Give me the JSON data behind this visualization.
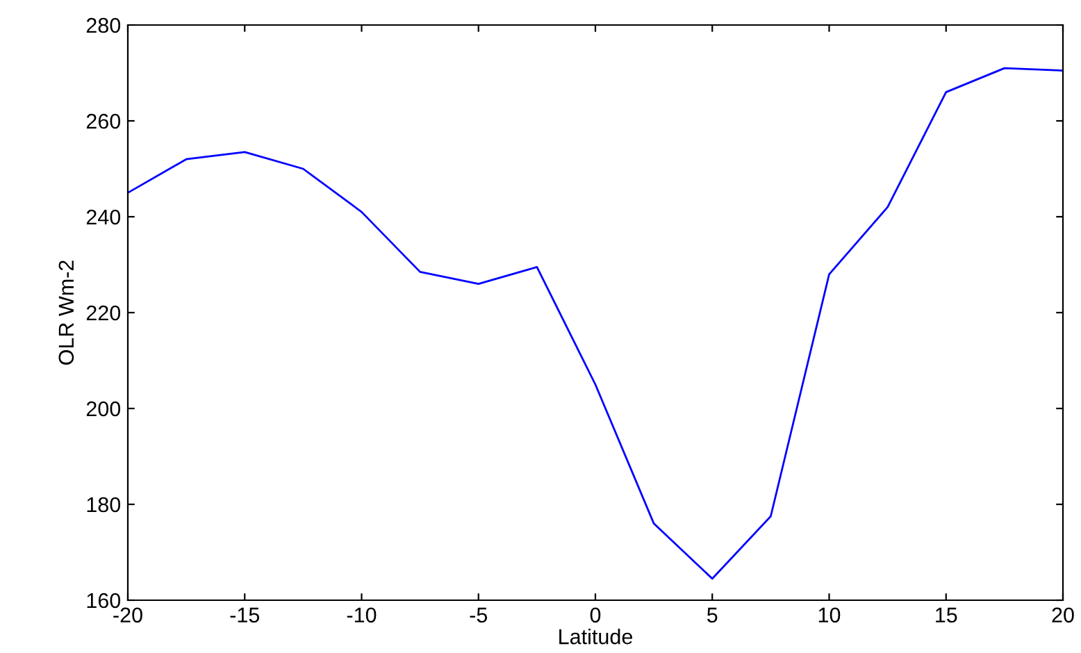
{
  "chart_data": {
    "type": "line",
    "xlabel": "Latitude",
    "ylabel": "OLR Wm-2",
    "x": [
      -20,
      -17.5,
      -15,
      -12.5,
      -10,
      -7.5,
      -5,
      -2.5,
      0,
      2.5,
      5,
      7.5,
      10,
      12.5,
      15,
      17.5,
      20
    ],
    "series": [
      {
        "color": "#0000ff",
        "values": [
          245,
          252,
          253.5,
          250,
          241,
          228.5,
          226,
          229.5,
          205,
          176,
          164.5,
          177.5,
          228,
          242,
          266,
          271,
          270.5
        ]
      }
    ],
    "xlim": [
      -20,
      20
    ],
    "ylim": [
      160,
      280
    ],
    "xticks": [
      -20,
      -15,
      -10,
      -5,
      0,
      5,
      10,
      15,
      20
    ],
    "yticks": [
      160,
      180,
      200,
      220,
      240,
      260,
      280
    ],
    "grid": false,
    "marker": "none",
    "line_style": "solid"
  }
}
